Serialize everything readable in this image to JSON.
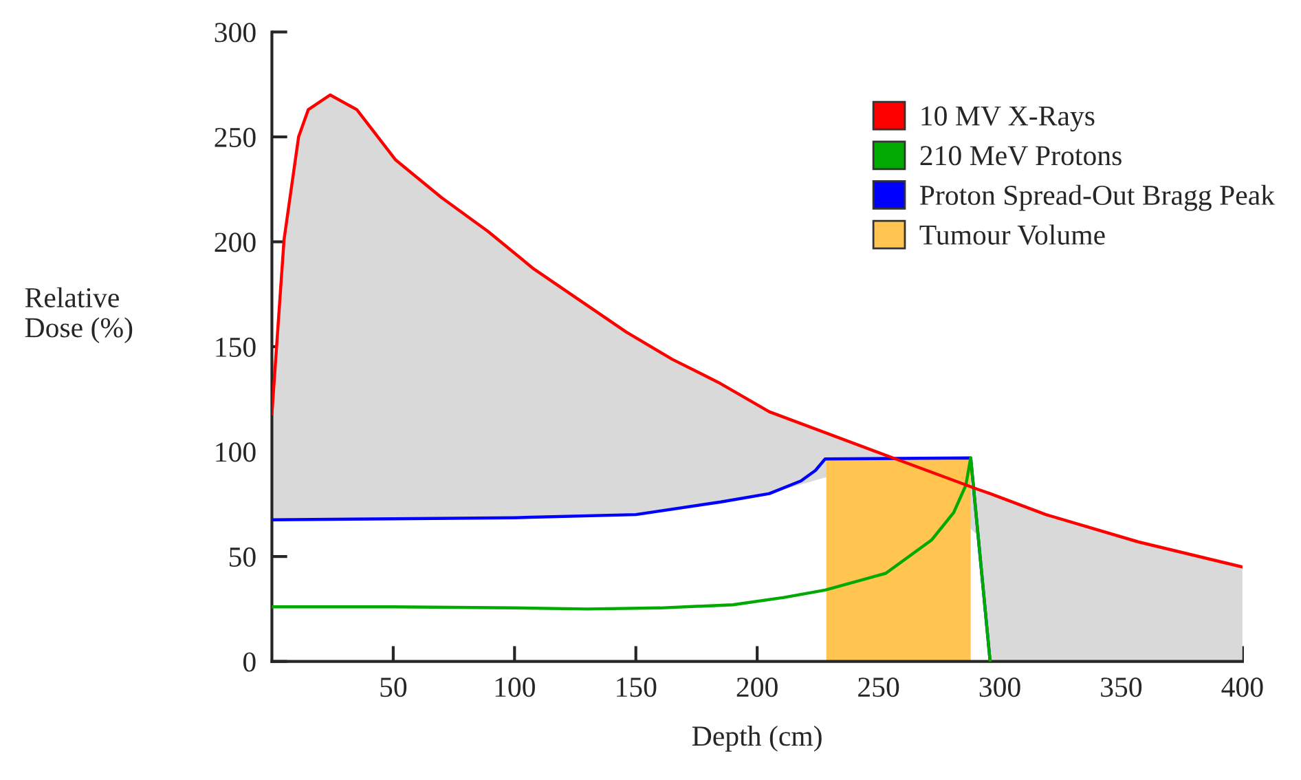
{
  "chart_data": {
    "type": "line",
    "xlabel": "Depth (cm)",
    "ylabel": "Relative\nDose (%)",
    "xlim": [
      0,
      400
    ],
    "xticks": [
      50,
      100,
      150,
      200,
      250,
      300,
      350,
      400
    ],
    "ylim": [
      0,
      300
    ],
    "yticks": [
      0,
      50,
      100,
      150,
      200,
      250,
      300
    ],
    "grid": false,
    "legend": "top right",
    "series": [
      {
        "name": "10 MV X-Rays",
        "color": "#ff0000",
        "x": [
          0,
          5,
          11,
          15,
          24,
          35,
          51,
          70,
          89,
          108,
          127,
          146,
          165,
          184,
          205,
          256,
          291,
          296,
          319,
          357,
          400
        ],
        "values": [
          118,
          201,
          250,
          263,
          270,
          263,
          239,
          221,
          205,
          187,
          172,
          157,
          144,
          133,
          119,
          97,
          82,
          80,
          70,
          57,
          45
        ],
        "upper": [
          118,
          201,
          250,
          263,
          270,
          263,
          239,
          221,
          205,
          187,
          172,
          157,
          144,
          133,
          119,
          97,
          82,
          80,
          70,
          57,
          45
        ],
        "lower": [
          67.5,
          67.5,
          67.5,
          67.5,
          67.5,
          68,
          68,
          68,
          68.5,
          68.5,
          69,
          70,
          72,
          76,
          80,
          97,
          60,
          0,
          0,
          0,
          0
        ]
      },
      {
        "name": "210 MeV Protons",
        "color": "#00aa00",
        "x": [
          0,
          50,
          100,
          130,
          160,
          190,
          211,
          228,
          253,
          272,
          281,
          286,
          288,
          296
        ],
        "values": [
          26,
          26,
          25.5,
          25,
          25.5,
          27,
          30.5,
          34,
          42,
          58,
          71,
          84,
          97,
          0
        ]
      },
      {
        "name": "Proton Spread-Out Bragg Peak",
        "color": "#0000ff",
        "x": [
          0,
          50,
          100,
          150,
          185,
          205,
          218,
          224,
          228,
          288,
          296
        ],
        "values": [
          67.5,
          68,
          68.5,
          70,
          76,
          80,
          86,
          91,
          96.5,
          97,
          0
        ]
      },
      {
        "name": "Tumour Volume",
        "type": "area",
        "color": "#ffc550",
        "x": [
          228.5,
          288
        ],
        "values": [
          96.5,
          97
        ]
      }
    ]
  }
}
